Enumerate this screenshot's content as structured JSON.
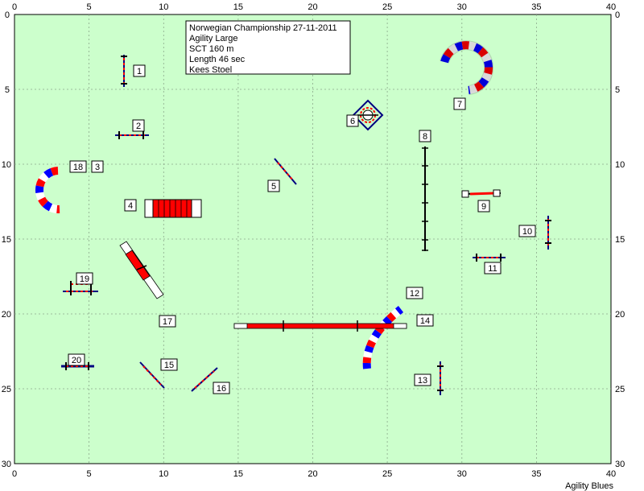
{
  "course": {
    "title": "Norwegian Championship 27-11-2011",
    "class": "Agility Large",
    "sct": "SCT 160 m",
    "length": "Length 46 sec",
    "judge": "Kees Stoel"
  },
  "axis": {
    "x_ticks": [
      "0",
      "5",
      "10",
      "15",
      "20",
      "25",
      "30",
      "35",
      "40"
    ],
    "y_ticks": [
      "0",
      "5",
      "10",
      "15",
      "20",
      "25",
      "30"
    ]
  },
  "brand": "Agility Blues",
  "colors": {
    "field": "#ccffcc",
    "red": "#ff0000",
    "blue": "#0000ff",
    "navy": "#000080",
    "white": "#ffffff"
  },
  "numbers": {
    "n1": "1",
    "n2": "2",
    "n3": "3",
    "n4": "4",
    "n5": "5",
    "n6": "6",
    "n7": "7",
    "n8": "8",
    "n9": "9",
    "n10": "10",
    "n11": "11",
    "n12": "12",
    "n13": "13",
    "n14": "14",
    "n15": "15",
    "n16": "16",
    "n17": "17",
    "n18": "18",
    "n19": "19",
    "n20": "20"
  }
}
